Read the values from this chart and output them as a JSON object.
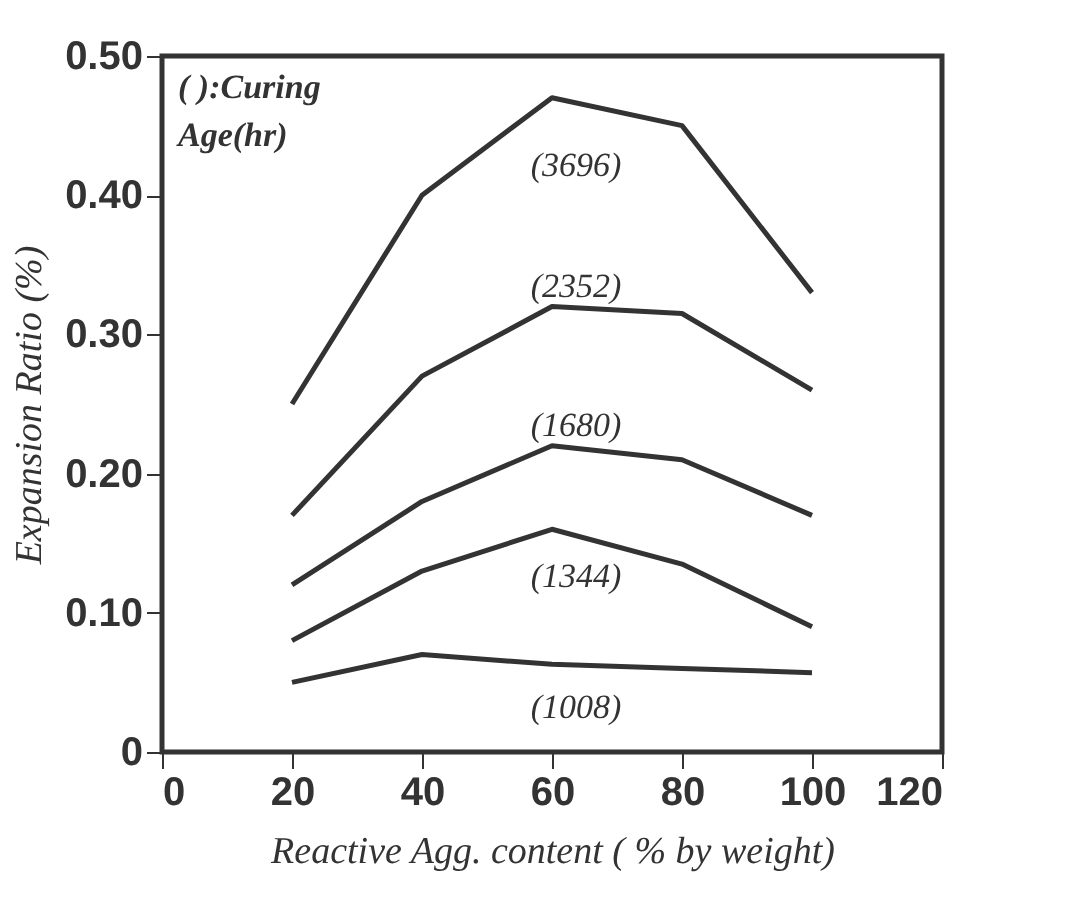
{
  "chart_data": {
    "type": "line",
    "xlabel": "Reactive Agg. content ( % by weight)",
    "ylabel": "Expansion Ratio (%)",
    "annotations": [
      "( ):Curing Age(hr)"
    ],
    "x": [
      20,
      40,
      60,
      80,
      100
    ],
    "series": [
      {
        "name": "(3696)",
        "color": "#333333",
        "values": [
          0.25,
          0.4,
          0.47,
          0.45,
          0.33
        ]
      },
      {
        "name": "(2352)",
        "color": "#333333",
        "values": [
          0.17,
          0.27,
          0.32,
          0.315,
          0.26
        ]
      },
      {
        "name": "(1680)",
        "color": "#333333",
        "values": [
          0.12,
          0.18,
          0.22,
          0.21,
          0.17
        ]
      },
      {
        "name": "(1344)",
        "color": "#333333",
        "values": [
          0.08,
          0.13,
          0.16,
          0.135,
          0.09
        ]
      },
      {
        "name": "(1008)",
        "color": "#333333",
        "values": [
          0.05,
          0.07,
          0.063,
          0.06,
          0.057
        ]
      }
    ],
    "xlim": [
      0,
      120
    ],
    "xticks": [
      0,
      20,
      40,
      60,
      80,
      100,
      120
    ],
    "ylim": [
      0,
      0.5
    ],
    "yticks": [
      0,
      {
        "value": 0.1,
        "label": "0.10"
      },
      {
        "value": 0.2,
        "label": "0.20"
      },
      {
        "value": 0.3,
        "label": "0.30"
      },
      {
        "value": 0.4,
        "label": "0.40"
      },
      {
        "value": 0.5,
        "label": "0.50"
      }
    ],
    "grid": false,
    "marker": "none",
    "line_style": "solid"
  }
}
